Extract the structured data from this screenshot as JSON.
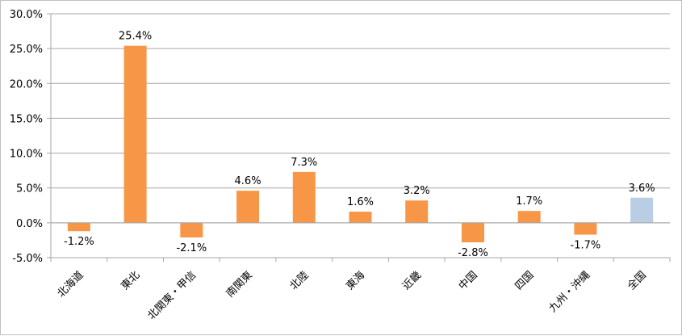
{
  "chart_data": {
    "type": "bar",
    "categories": [
      "北海道",
      "東北",
      "北関東・甲信",
      "南関東",
      "北陸",
      "東海",
      "近畿",
      "中国",
      "四国",
      "九州・沖縄",
      "全国"
    ],
    "values": [
      -1.2,
      25.4,
      -2.1,
      4.6,
      7.3,
      1.6,
      3.2,
      -2.8,
      1.7,
      -1.7,
      3.6
    ],
    "data_labels": [
      "-1.2%",
      "25.4%",
      "-2.1%",
      "4.6%",
      "7.3%",
      "1.6%",
      "3.2%",
      "-2.8%",
      "1.7%",
      "-1.7%",
      "3.6%"
    ],
    "colors": [
      "#f79646",
      "#f79646",
      "#f79646",
      "#f79646",
      "#f79646",
      "#f79646",
      "#f79646",
      "#f79646",
      "#f79646",
      "#f79646",
      "#b9cde5"
    ],
    "ylim": [
      -5,
      30
    ],
    "yticks": [
      30,
      25,
      20,
      15,
      10,
      5,
      0,
      -5
    ],
    "ytick_labels": [
      "30.0%",
      "25.0%",
      "20.0%",
      "15.0%",
      "10.0%",
      "5.0%",
      "0.0%",
      "-5.0%"
    ],
    "grid": true,
    "title": "",
    "xlabel": "",
    "ylabel": ""
  }
}
